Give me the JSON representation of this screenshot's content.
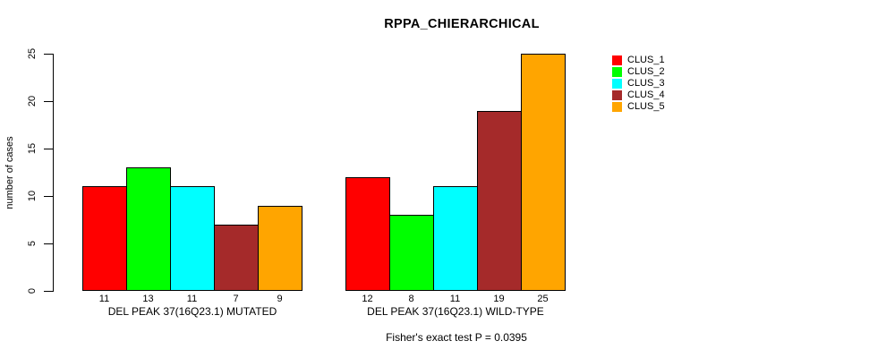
{
  "chart_data": {
    "type": "bar",
    "title": "RPPA_CHIERARCHICAL",
    "ylabel": "number of cases",
    "xlabel": "",
    "ylim": [
      0,
      25
    ],
    "yticks": [
      0,
      5,
      10,
      15,
      20,
      25
    ],
    "grid": false,
    "legend_position": "right",
    "categories": [
      "DEL PEAK 37(16Q23.1) MUTATED",
      "DEL PEAK 37(16Q23.1) WILD-TYPE"
    ],
    "series": [
      {
        "name": "CLUS_1",
        "color": "#FF0000",
        "values": [
          11,
          12
        ]
      },
      {
        "name": "CLUS_2",
        "color": "#00FF00",
        "values": [
          13,
          8
        ]
      },
      {
        "name": "CLUS_3",
        "color": "#00FFFF",
        "values": [
          11,
          11
        ]
      },
      {
        "name": "CLUS_4",
        "color": "#A52A2A",
        "values": [
          7,
          19
        ]
      },
      {
        "name": "CLUS_5",
        "color": "#FFA500",
        "values": [
          9,
          25
        ]
      }
    ],
    "bar_value_labels": {
      "DEL PEAK 37(16Q23.1) MUTATED": [
        11,
        13,
        11,
        7,
        9
      ],
      "DEL PEAK 37(16Q23.1) WILD-TYPE": [
        12,
        8,
        11,
        19,
        25
      ]
    },
    "annotation": "Fisher's exact test P = 0.0395",
    "bar_border_color": "#000000",
    "background_color": "#FFFFFF"
  }
}
